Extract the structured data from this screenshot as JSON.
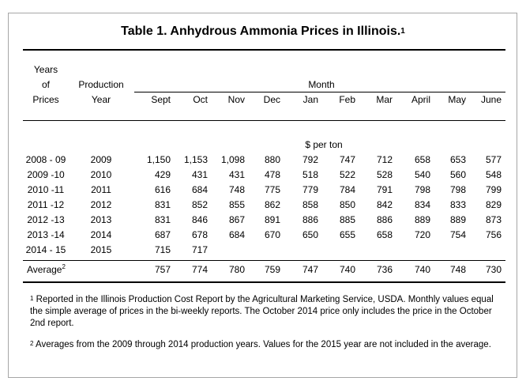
{
  "title": "Table 1.  Anhydrous Ammonia Prices in Illinois.",
  "title_sup": "1",
  "headers": {
    "years_l1": "Years",
    "years_l2": "of",
    "years_l3": "Prices",
    "prod_l1": "Production",
    "prod_l2": "Year",
    "month": "Month",
    "months": [
      "Sept",
      "Oct",
      "Nov",
      "Dec",
      "Jan",
      "Feb",
      "Mar",
      "April",
      "May",
      "June"
    ],
    "unit": "$ per ton"
  },
  "rows": [
    {
      "years": "2008 - 09",
      "prod": "2009",
      "values": [
        "1,150",
        "1,153",
        "1,098",
        "880",
        "792",
        "747",
        "712",
        "658",
        "653",
        "577"
      ]
    },
    {
      "years": "2009 -10",
      "prod": "2010",
      "values": [
        "429",
        "431",
        "431",
        "478",
        "518",
        "522",
        "528",
        "540",
        "560",
        "548"
      ]
    },
    {
      "years": "2010 -11",
      "prod": "2011",
      "values": [
        "616",
        "684",
        "748",
        "775",
        "779",
        "784",
        "791",
        "798",
        "798",
        "799"
      ]
    },
    {
      "years": "2011 -12",
      "prod": "2012",
      "values": [
        "831",
        "852",
        "855",
        "862",
        "858",
        "850",
        "842",
        "834",
        "833",
        "829"
      ]
    },
    {
      "years": "2012 -13",
      "prod": "2013",
      "values": [
        "831",
        "846",
        "867",
        "891",
        "886",
        "885",
        "886",
        "889",
        "889",
        "873"
      ]
    },
    {
      "years": "2013 -14",
      "prod": "2014",
      "values": [
        "687",
        "678",
        "684",
        "670",
        "650",
        "655",
        "658",
        "720",
        "754",
        "756"
      ]
    },
    {
      "years": "2014 - 15",
      "prod": "2015",
      "values": [
        "715",
        "717",
        "",
        "",
        "",
        "",
        "",
        "",
        "",
        ""
      ]
    }
  ],
  "average": {
    "label": "Average",
    "sup": "2",
    "values": [
      "757",
      "774",
      "780",
      "759",
      "747",
      "740",
      "736",
      "740",
      "748",
      "730"
    ]
  },
  "notes": [
    {
      "sup": "1",
      "text": " Reported in the Illinois Production Cost Report by the Agricultural Marketing Service, USDA. Monthly values equal the simple average of prices in the bi-weekly reports.  The October 2014 price only includes the price in the October 2nd report."
    },
    {
      "sup": "2",
      "text": " Averages from the 2009 through 2014 production years.  Values for the 2015 year are not included in the average."
    }
  ]
}
